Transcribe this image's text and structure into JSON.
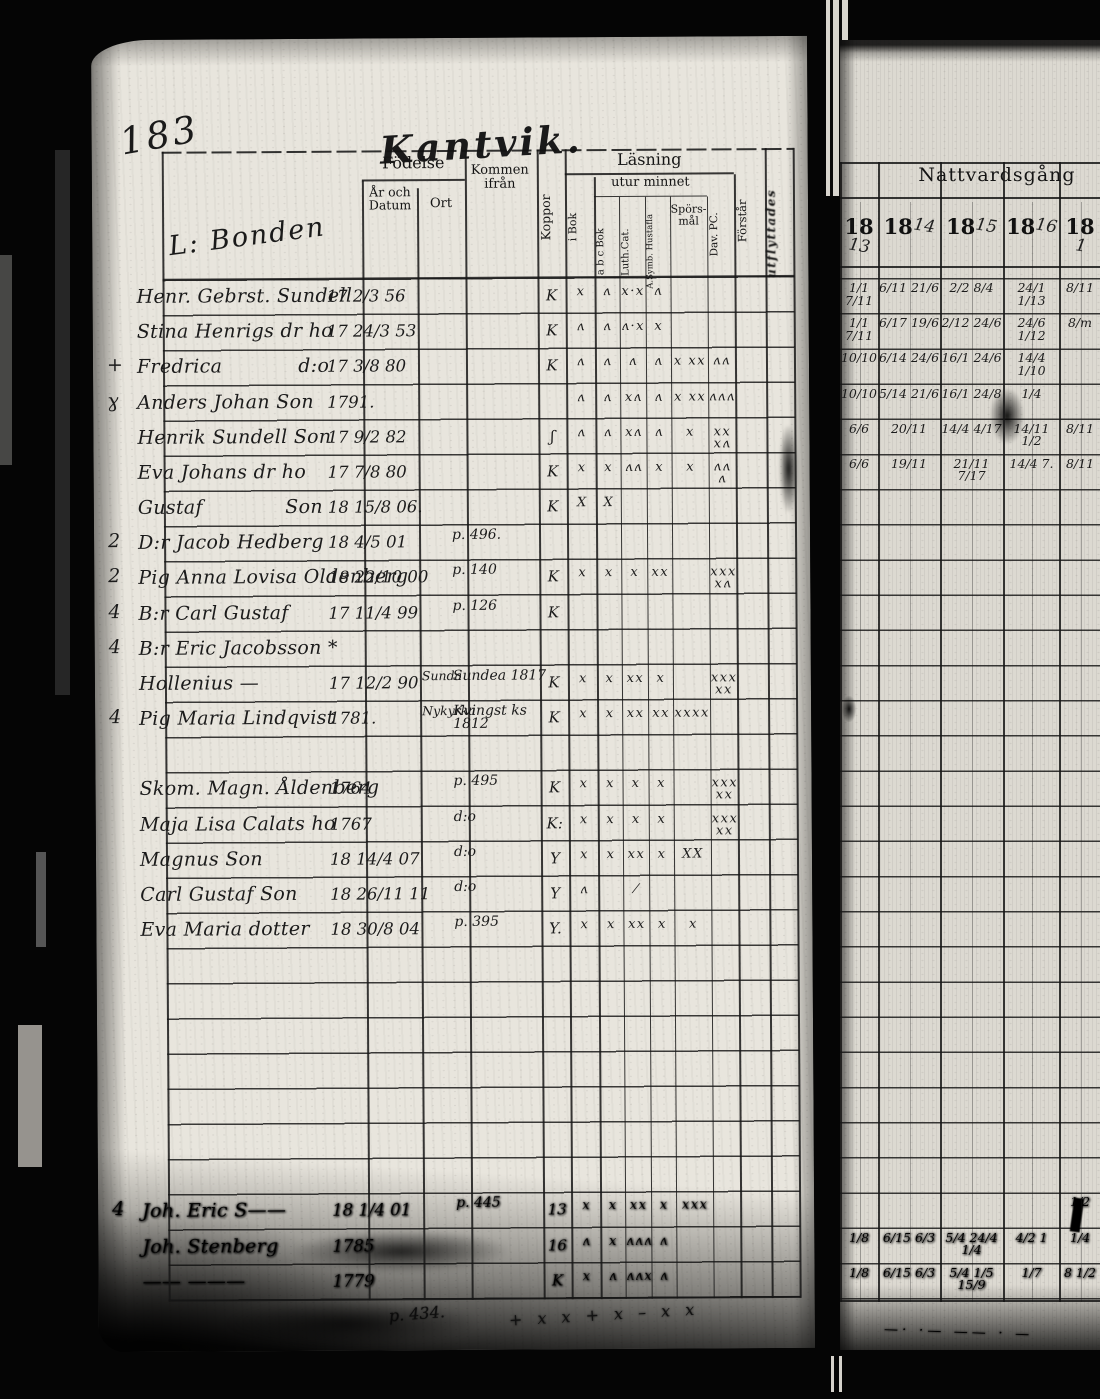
{
  "page_header": {
    "page_number": "183",
    "title": "Kantvik.",
    "column_group_heading": "L: Bonden"
  },
  "printed_headers": {
    "fodelse": "Födelse",
    "ar_och_datum": "År och Datum",
    "ort": "Ort",
    "kommen_ifran": "Kommen ifrån",
    "koppor": "Koppor",
    "lasning": "Läsning",
    "utur_minnet": "utur minnet",
    "sub_columns": [
      "i Bok",
      "a b c Bok",
      "Luth.Cat.",
      "A.Symb. Hustafla",
      "Spörs- mål",
      "Dav. PC.",
      "Förstår"
    ],
    "edge_note": "utflyttades"
  },
  "right_page": {
    "heading": "Nattvardsgång",
    "year_prefix": "18",
    "years": [
      "13",
      "14",
      "15",
      "16",
      "1"
    ],
    "bottom_scribble": "—· ·— —— · —"
  },
  "below_frame": {
    "page_ref": "p. 434.",
    "marks": "+ x x + x – x x"
  },
  "rows": [
    {
      "i": 0,
      "margin": "",
      "name": "Henr. Gebrst. Sundell",
      "birth": "17 2/3 56",
      "ort": "",
      "kommen": "",
      "koppor": "K",
      "marks": [
        "x",
        "ʌ",
        "x·x",
        "ʌ",
        "",
        "",
        ""
      ],
      "natt": [
        "1/1 7/11",
        "6/11 21/6",
        "2/2 8/4",
        "24/1 1/13",
        "8/11"
      ]
    },
    {
      "i": 1,
      "margin": "",
      "name": "Stina Henrigs dr ho",
      "birth": "17 24/3 53",
      "ort": "",
      "kommen": "",
      "koppor": "K",
      "marks": [
        "ʌ",
        "ʌ",
        "ʌ·x",
        "x",
        "",
        "",
        ""
      ],
      "natt": [
        "1/1 7/11",
        "6/17 19/6",
        "2/12 24/6",
        "24/6 1/12",
        "8/m"
      ]
    },
    {
      "i": 2,
      "margin": "+",
      "name": "Fredrica            d:o",
      "birth": "17 3/8 80",
      "ort": "",
      "kommen": "",
      "koppor": "K",
      "marks": [
        "ʌ",
        "ʌ",
        "ʌ",
        "ʌ",
        "x xx",
        "ʌʌ",
        ""
      ],
      "natt": [
        "10/10",
        "6/14 24/6",
        "16/1 24/6",
        "14/4 1/10",
        ""
      ]
    },
    {
      "i": 3,
      "margin": "ɣ",
      "name": "Anders Johan Son",
      "birth": "1791.",
      "ort": "",
      "kommen": "",
      "koppor": "",
      "marks": [
        "ʌ",
        "ʌ",
        "xʌ",
        "ʌ",
        "x xx",
        "ʌʌʌ",
        ""
      ],
      "natt": [
        "10/10",
        "5/14 21/6",
        "16/1 24/8",
        "1/4",
        ""
      ]
    },
    {
      "i": 4,
      "margin": "",
      "name": "Henrik Sundell Son",
      "birth": "17 9/2 82",
      "ort": "",
      "kommen": "",
      "koppor": "ʃ",
      "marks": [
        "ʌ",
        "ʌ",
        "xʌ",
        "ʌ",
        "x",
        "xx xʌ",
        ""
      ],
      "natt": [
        "6/6",
        "20/11",
        "14/4 4/17",
        "14/11 1/2",
        "8/11"
      ]
    },
    {
      "i": 5,
      "margin": "",
      "name": "Eva Johans dr ho",
      "birth": "17 7/8 80",
      "ort": "",
      "kommen": "",
      "koppor": "K",
      "marks": [
        "x",
        "x",
        "ʌʌ",
        "x",
        "x",
        "ʌʌ ʌ",
        ""
      ],
      "natt": [
        "6/6",
        "19/11",
        "21/11 7/17",
        "14/4 7.",
        "8/11"
      ]
    },
    {
      "i": 6,
      "margin": "",
      "name": "Gustaf             Son",
      "birth": "18 15/8 06.",
      "ort": "",
      "kommen": "",
      "koppor": "K",
      "marks": [
        "X",
        "X",
        "",
        "",
        "",
        "",
        ""
      ],
      "natt": [
        "",
        "",
        "",
        "",
        ""
      ]
    },
    {
      "i": 7,
      "margin": "2",
      "name": "D:r Jacob Hedberg",
      "birth": "18 4/5 01",
      "ort": "",
      "kommen": "p. 496.",
      "koppor": "",
      "marks": [],
      "natt": []
    },
    {
      "i": 8,
      "margin": "2",
      "name": "Pig Anna Lovisa Oldenberg",
      "birth": "18 22/10 00",
      "ort": "",
      "kommen": "p. 140",
      "koppor": "K",
      "marks": [
        "x",
        "x",
        "x",
        "xx",
        "",
        "xxx xʌ",
        ""
      ],
      "natt": []
    },
    {
      "i": 9,
      "margin": "4",
      "name": "B:r Carl Gustaf",
      "birth": "17 11/4 99",
      "ort": "",
      "kommen": "p. 126",
      "koppor": "K",
      "marks": [],
      "natt": []
    },
    {
      "i": 10,
      "margin": "4",
      "name": "B:r Eric Jacobsson *",
      "birth": "",
      "ort": "",
      "kommen": "",
      "koppor": "",
      "marks": [],
      "natt": []
    },
    {
      "i": 11,
      "margin": "",
      "name": "Hollenius —",
      "birth": "17 12/2 90",
      "ort": "Sunda",
      "kommen": "Sundea 1817",
      "koppor": "K",
      "marks": [
        "x",
        "x",
        "xx",
        "x",
        "",
        "xxx xx",
        ""
      ],
      "natt": []
    },
    {
      "i": 12,
      "margin": "4",
      "name": "Pig Maria Lindqvist",
      "birth": "1781.",
      "ort": "Nykyrka",
      "kommen": "Kvingst ks 1812",
      "koppor": "K",
      "marks": [
        "x",
        "x",
        "xx",
        "xx",
        "xxxx",
        "",
        ""
      ],
      "natt": []
    },
    {
      "i": 14,
      "margin": "",
      "name": "Skom. Magn. Åldenberg",
      "birth": "1764",
      "ort": "",
      "kommen": "p. 495",
      "koppor": "K",
      "marks": [
        "x",
        "x",
        "x",
        "x",
        "",
        "xxx xx",
        ""
      ],
      "natt": []
    },
    {
      "i": 15,
      "margin": "",
      "name": "Maja Lisa Calats ho",
      "birth": "1767",
      "ort": "",
      "kommen": "d:o",
      "koppor": "K:",
      "marks": [
        "x",
        "x",
        "x",
        "x",
        "",
        "xxx xx",
        ""
      ],
      "natt": []
    },
    {
      "i": 16,
      "margin": "",
      "name": "Magnus Son",
      "birth": "18 14/4 07",
      "ort": "",
      "kommen": "d:o",
      "koppor": "Y",
      "marks": [
        "x",
        "x",
        "xx",
        "x",
        "XX",
        "",
        ""
      ],
      "natt": []
    },
    {
      "i": 17,
      "margin": "",
      "name": "Carl Gustaf Son",
      "birth": "18 26/11 11",
      "ort": "",
      "kommen": "d:o",
      "koppor": "Y",
      "marks": [
        "ʌ",
        "",
        "⁄",
        "",
        "",
        "",
        ""
      ],
      "natt": []
    },
    {
      "i": 18,
      "margin": "",
      "name": "Eva Maria dotter",
      "birth": "18 30/8 04",
      "ort": "",
      "kommen": "p. 395",
      "koppor": "Y.",
      "marks": [
        "x",
        "x",
        "xx",
        "x",
        "x",
        "",
        ""
      ],
      "natt": []
    },
    {
      "i": 26,
      "margin": "4",
      "name": "Joh. Eric S——",
      "birth": "18 1/4 01",
      "ort": "",
      "kommen": "p. 445",
      "koppor": "13",
      "marks": [
        "x",
        "x",
        "xx",
        "x",
        "xxx",
        "",
        ""
      ],
      "smudge": true,
      "natt": [
        "",
        "",
        "",
        "",
        "1/2"
      ]
    },
    {
      "i": 27,
      "margin": "",
      "name": "Joh. Stenberg",
      "birth": "1785",
      "ort": "",
      "kommen": "",
      "koppor": "16",
      "marks": [
        "ʌ",
        "x",
        "ʌʌʌ",
        "ʌ",
        "",
        "",
        ""
      ],
      "smudge": true,
      "natt": [
        "1/8",
        "6/15 6/3",
        "5/4 24/4 1/4",
        "4/2 1",
        "1/4"
      ]
    },
    {
      "i": 28,
      "margin": "",
      "name": "—— ———",
      "birth": "1779",
      "ort": "",
      "kommen": "",
      "koppor": "K",
      "marks": [
        "x",
        "ʌ",
        "ʌʌx",
        "ʌ",
        "",
        "",
        ""
      ],
      "smudge": true,
      "natt": [
        "1/8",
        "6/15 6/3",
        "5/4 1/5 15/9",
        "1/7",
        "8 1/2"
      ]
    }
  ]
}
